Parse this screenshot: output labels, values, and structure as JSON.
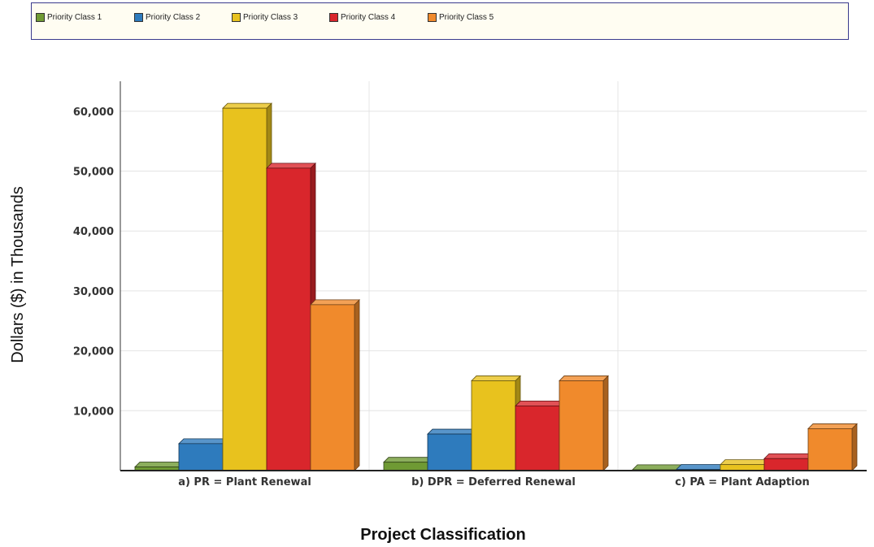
{
  "chart_data": {
    "type": "bar",
    "title": "",
    "xlabel": "Project Classification",
    "ylabel": "Dollars ($) in Thousands",
    "categories": [
      "a) PR = Plant Renewal",
      "b) DPR = Deferred Renewal",
      "c) PA = Plant Adaption"
    ],
    "series": [
      {
        "name": "Priority Class 1",
        "color": "#6f9a34",
        "values": [
          600,
          1400,
          150
        ]
      },
      {
        "name": "Priority Class 2",
        "color": "#2e7bbd",
        "values": [
          4500,
          6100,
          200
        ]
      },
      {
        "name": "Priority Class 3",
        "color": "#e8c21e",
        "values": [
          60500,
          15000,
          1000
        ]
      },
      {
        "name": "Priority Class 4",
        "color": "#d9262c",
        "values": [
          50500,
          10800,
          2000
        ]
      },
      {
        "name": "Priority Class 5",
        "color": "#f08a2c",
        "values": [
          27700,
          15000,
          7000
        ]
      }
    ],
    "ylim": [
      0,
      65000
    ],
    "yticks": [
      10000,
      20000,
      30000,
      40000,
      50000,
      60000
    ],
    "ytick_labels": [
      "10,000",
      "20,000",
      "30,000",
      "40,000",
      "50,000",
      "60,000"
    ],
    "grid": true,
    "legend_position": "top",
    "bar_style": "3d"
  }
}
